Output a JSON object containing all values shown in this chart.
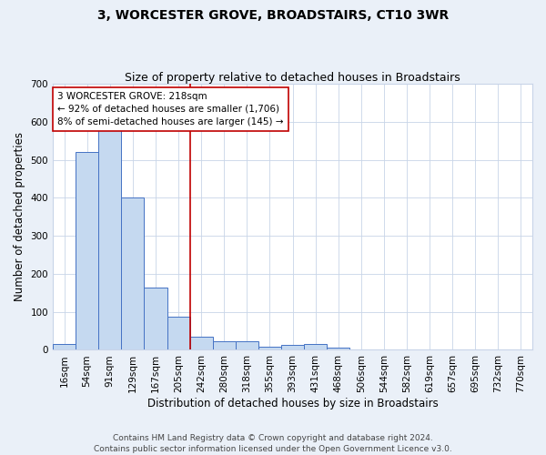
{
  "title": "3, WORCESTER GROVE, BROADSTAIRS, CT10 3WR",
  "subtitle": "Size of property relative to detached houses in Broadstairs",
  "xlabel": "Distribution of detached houses by size in Broadstairs",
  "ylabel": "Number of detached properties",
  "bar_labels": [
    "16sqm",
    "54sqm",
    "91sqm",
    "129sqm",
    "167sqm",
    "205sqm",
    "242sqm",
    "280sqm",
    "318sqm",
    "355sqm",
    "393sqm",
    "431sqm",
    "468sqm",
    "506sqm",
    "544sqm",
    "582sqm",
    "619sqm",
    "657sqm",
    "695sqm",
    "732sqm",
    "770sqm"
  ],
  "bar_heights": [
    15,
    520,
    600,
    400,
    163,
    88,
    35,
    22,
    23,
    9,
    14,
    15,
    7,
    0,
    0,
    0,
    0,
    0,
    0,
    0,
    0
  ],
  "bar_color": "#c5d9f0",
  "bar_edge_color": "#4472c4",
  "ylim": [
    0,
    700
  ],
  "yticks": [
    0,
    100,
    200,
    300,
    400,
    500,
    600,
    700
  ],
  "vline_color": "#c00000",
  "vline_x": 5.5,
  "annotation_text": "3 WORCESTER GROVE: 218sqm\n← 92% of detached houses are smaller (1,706)\n8% of semi-detached houses are larger (145) →",
  "annotation_box_color": "#ffffff",
  "annotation_box_edge_color": "#c00000",
  "footer_line1": "Contains HM Land Registry data © Crown copyright and database right 2024.",
  "footer_line2": "Contains public sector information licensed under the Open Government Licence v3.0.",
  "bg_color": "#eaf0f8",
  "plot_bg_color": "#ffffff",
  "grid_color": "#c8d4e8",
  "title_fontsize": 10,
  "subtitle_fontsize": 9,
  "axis_label_fontsize": 8.5,
  "tick_fontsize": 7.5,
  "annotation_fontsize": 7.5,
  "footer_fontsize": 6.5
}
